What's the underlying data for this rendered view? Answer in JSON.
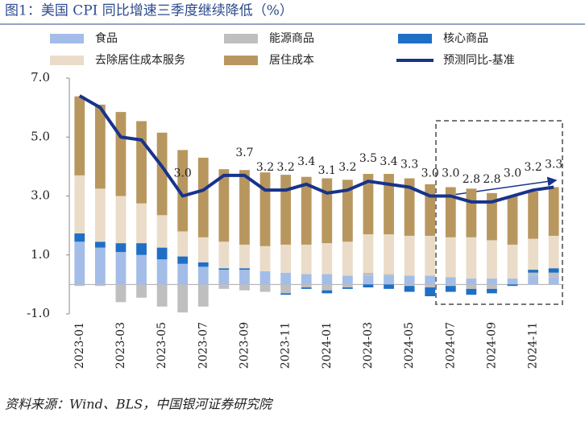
{
  "chart_data": {
    "type": "bar",
    "stacked": true,
    "title": "图1：美国 CPI 同比增速三季度继续降低（%）",
    "source": "资料来源：Wind、BLS，中国银河证券研究院",
    "categories": [
      "2023-01",
      null,
      "2023-03",
      null,
      "2023-05",
      null,
      "2023-07",
      null,
      "2023-09",
      null,
      "2023-11",
      null,
      "2024-01",
      null,
      "2024-03",
      null,
      "2024-05",
      null,
      "2024-07",
      null,
      "2024-09",
      null,
      "2024-11",
      null
    ],
    "ylim": [
      -1,
      7
    ],
    "yticks": [
      {
        "value": -1,
        "label": "-1.0"
      },
      {
        "value": 1,
        "label": "1.0"
      },
      {
        "value": 3,
        "label": "3.0"
      },
      {
        "value": 5,
        "label": "5.0"
      },
      {
        "value": 7,
        "label": "7.0"
      }
    ],
    "grid": false,
    "series": [
      {
        "name": "食品",
        "color": "#a3bde8",
        "values": [
          1.45,
          1.25,
          1.1,
          1.0,
          0.85,
          0.7,
          0.6,
          0.5,
          0.5,
          0.45,
          0.4,
          0.35,
          0.35,
          0.3,
          0.3,
          0.3,
          0.3,
          0.3,
          0.25,
          0.2,
          0.2,
          0.2,
          0.3,
          0.25
        ]
      },
      {
        "name": "能源商品",
        "color": "#bfbfbf",
        "values": [
          -0.05,
          -0.05,
          -0.6,
          -0.45,
          -0.75,
          -0.95,
          -0.75,
          -0.15,
          -0.2,
          -0.25,
          -0.3,
          -0.1,
          -0.2,
          -0.1,
          0.1,
          0.05,
          -0.05,
          -0.1,
          -0.05,
          -0.15,
          -0.15,
          0,
          0.1,
          0.15
        ]
      },
      {
        "name": "核心商品",
        "color": "#1f6fc5",
        "values": [
          0.28,
          0.2,
          0.3,
          0.4,
          0.4,
          0.25,
          0.15,
          0.05,
          0.05,
          0,
          -0.05,
          -0.05,
          -0.1,
          -0.05,
          -0.1,
          -0.15,
          -0.2,
          -0.3,
          -0.2,
          -0.2,
          -0.15,
          -0.05,
          0.1,
          0.15
        ]
      },
      {
        "name": "去除居住成本服务",
        "color": "#eadcc8",
        "values": [
          1.97,
          1.8,
          1.6,
          1.35,
          1.1,
          0.85,
          0.85,
          0.9,
          0.8,
          0.85,
          0.95,
          1.0,
          1.05,
          1.15,
          1.3,
          1.35,
          1.35,
          1.35,
          1.35,
          1.4,
          1.3,
          1.15,
          1.05,
          1.1
        ]
      },
      {
        "name": "居住成本",
        "color": "#b8975f",
        "values": [
          2.68,
          2.85,
          2.85,
          2.79,
          2.8,
          2.76,
          2.7,
          2.46,
          2.53,
          2.5,
          2.37,
          2.3,
          2.2,
          2.1,
          2.05,
          2.05,
          1.95,
          1.75,
          1.7,
          1.65,
          1.6,
          1.65,
          1.6,
          1.65
        ]
      },
      {
        "name": "预测同比-基准",
        "type": "line",
        "color": "#17338c",
        "values": [
          6.4,
          6.0,
          5.0,
          4.9,
          4.0,
          3.0,
          3.2,
          3.7,
          3.7,
          3.2,
          3.2,
          3.4,
          3.1,
          3.2,
          3.5,
          3.4,
          3.3,
          3.0,
          3.0,
          2.8,
          2.8,
          3.0,
          3.2,
          3.3
        ],
        "value_labels": [
          null,
          null,
          null,
          null,
          null,
          "3.0",
          null,
          null,
          "3.7",
          "3.2",
          "3.2",
          "3.4",
          "3.1",
          "3.2",
          "3.5",
          "3.4",
          "3.3",
          "3.0",
          "3.0",
          "2.8",
          "2.8",
          "3.0",
          "3.2",
          "3.3"
        ]
      }
    ]
  }
}
